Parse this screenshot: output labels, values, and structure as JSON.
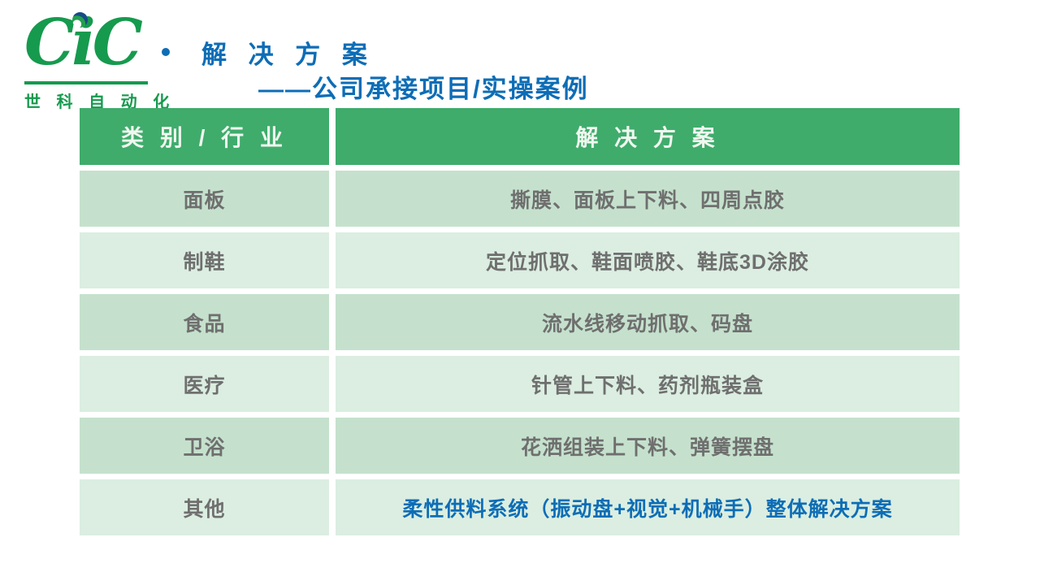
{
  "logo": {
    "text": "CiC",
    "subtext": "世 科 自 动 化"
  },
  "title": {
    "line1": "解 决 方 案",
    "line2": "——公司承接项目/实操案例"
  },
  "table": {
    "headers": [
      "类 别 / 行 业",
      "解 决 方 案"
    ],
    "rows": [
      {
        "category": "面板",
        "solution": "撕膜、面板上下料、四周点胶",
        "highlight": false
      },
      {
        "category": "制鞋",
        "solution": "定位抓取、鞋面喷胶、鞋底3D涂胶",
        "highlight": false
      },
      {
        "category": "食品",
        "solution": "流水线移动抓取、码盘",
        "highlight": false
      },
      {
        "category": "医疗",
        "solution": "针管上下料、药剂瓶装盒",
        "highlight": false
      },
      {
        "category": "卫浴",
        "solution": "花洒组装上下料、弹簧摆盘",
        "highlight": false
      },
      {
        "category": "其他",
        "solution": "柔性供料系统（振动盘+视觉+机械手）整体解决方案",
        "highlight": true
      }
    ]
  },
  "colors": {
    "header_green": "#3fac6c",
    "row_band_dark": "#c5e1cd",
    "row_band_light": "#dbeee1",
    "title_blue": "#0d6db6",
    "logo_green": "#169a4e",
    "body_text_gray": "#6f6f6f",
    "globe_navy": "#174b86",
    "background": "#ffffff"
  }
}
